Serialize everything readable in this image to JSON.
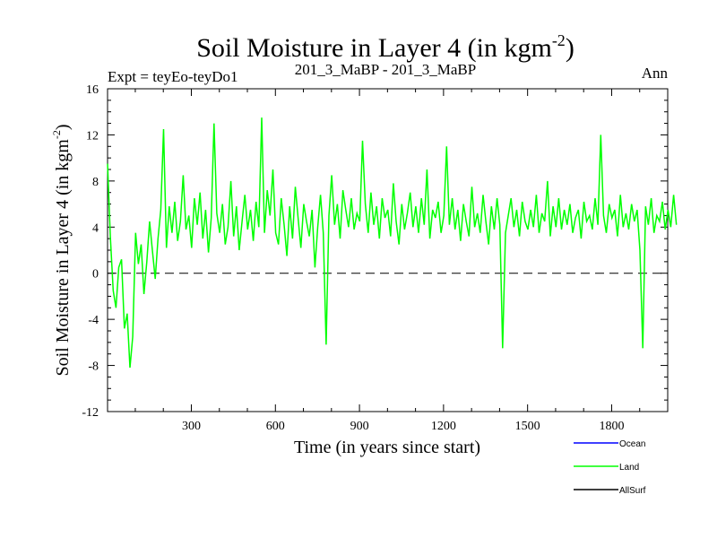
{
  "chart_data": {
    "type": "line",
    "title": "Soil Moisture in Layer 4 (in kgm",
    "title_sup": "-2",
    "title_close": ")",
    "subtitle_left": "Expt = teyEo-teyDo1",
    "subtitle_center": "201_3_MaBP - 201_3_MaBP",
    "subtitle_right": "Ann",
    "xlabel": "Time (in years since start)",
    "ylabel": "Soil Moisture in Layer 4 (in kgm",
    "ylabel_sup": "-2",
    "ylabel_close": ")",
    "xlim": [
      1,
      2000
    ],
    "ylim": [
      -12,
      16
    ],
    "xticks": [
      300,
      600,
      900,
      1200,
      1500,
      1800
    ],
    "xtick_labels": [
      "300",
      "600",
      "900",
      "1200",
      "1500",
      "1800"
    ],
    "yticks": [
      -12,
      -8,
      -4,
      0,
      4,
      8,
      12,
      16
    ],
    "ytick_labels": [
      "-12",
      "-8",
      "-4",
      "0",
      "4",
      "8",
      "12",
      "16"
    ],
    "reference_line": 0,
    "series": [
      {
        "name": "Ocean",
        "color": "#0000ff",
        "values": []
      },
      {
        "name": "Land",
        "color": "#00ff00",
        "x_start": 1,
        "x_step": 10,
        "values": [
          9.5,
          3.2,
          -1.5,
          -3.0,
          0.5,
          1.2,
          -4.8,
          -3.5,
          -8.2,
          -5.5,
          3.5,
          0.8,
          2.5,
          -1.8,
          1.0,
          4.5,
          2.0,
          -0.5,
          3.0,
          5.5,
          12.5,
          2.2,
          5.8,
          3.5,
          6.2,
          2.8,
          4.5,
          8.5,
          3.8,
          5.0,
          2.2,
          6.5,
          4.2,
          7.0,
          3.0,
          5.5,
          1.8,
          4.8,
          13.0,
          5.2,
          3.5,
          6.0,
          2.5,
          4.0,
          8.0,
          3.2,
          5.8,
          2.0,
          4.5,
          6.8,
          3.8,
          5.5,
          2.8,
          6.2,
          4.0,
          13.5,
          3.5,
          7.2,
          5.0,
          9.0,
          3.5,
          2.5,
          6.5,
          4.2,
          1.5,
          5.8,
          3.0,
          7.5,
          4.8,
          2.2,
          6.0,
          4.5,
          3.2,
          5.5,
          0.5,
          4.0,
          6.8,
          3.5,
          -6.2,
          5.0,
          8.5,
          4.2,
          6.0,
          3.0,
          7.2,
          5.5,
          4.0,
          6.5,
          3.8,
          5.2,
          4.5,
          11.5,
          6.0,
          3.5,
          7.0,
          4.2,
          5.8,
          3.0,
          6.5,
          4.8,
          5.5,
          3.2,
          7.8,
          4.5,
          2.5,
          6.0,
          3.8,
          5.2,
          7.0,
          4.0,
          5.8,
          3.5,
          6.5,
          4.2,
          9.0,
          3.0,
          5.5,
          4.8,
          6.2,
          3.5,
          5.0,
          11.0,
          4.2,
          6.5,
          3.8,
          5.5,
          2.8,
          6.0,
          4.5,
          3.2,
          7.5,
          4.0,
          5.2,
          3.5,
          6.8,
          4.5,
          2.5,
          5.8,
          3.8,
          6.5,
          4.2,
          -6.5,
          3.5,
          5.0,
          6.5,
          4.0,
          5.5,
          3.2,
          6.2,
          4.5,
          3.8,
          5.5,
          4.0,
          6.8,
          3.5,
          5.2,
          4.5,
          8.0,
          3.2,
          5.8,
          4.0,
          6.5,
          3.8,
          5.5,
          4.2,
          6.0,
          3.5,
          4.8,
          5.5,
          3.0,
          6.2,
          4.5,
          5.0,
          3.8,
          6.5,
          4.2,
          12.0,
          5.0,
          3.5,
          6.0,
          4.8,
          5.5,
          3.2,
          6.8,
          4.0,
          5.2,
          3.8,
          6.0,
          4.5,
          5.5,
          2.0,
          -6.5,
          5.8,
          4.2,
          6.5,
          3.5,
          5.0,
          4.5,
          6.2,
          3.8,
          5.5,
          4.0,
          6.8,
          4.2
        ]
      },
      {
        "name": "AllSurf",
        "color": "#000000",
        "values": []
      }
    ],
    "legend_position": "bottom-right"
  }
}
